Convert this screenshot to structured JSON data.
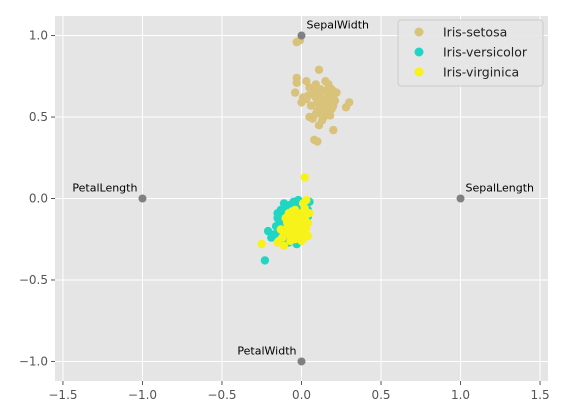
{
  "chart_data": {
    "type": "scatter",
    "title": "",
    "xlabel": "",
    "ylabel": "",
    "xlim": [
      -1.55,
      1.55
    ],
    "ylim": [
      -1.12,
      1.12
    ],
    "grid": true,
    "legend_position": "top-right",
    "x_ticks": [
      {
        "value": -1.5,
        "label": "−1.5"
      },
      {
        "value": -1.0,
        "label": "−1.0"
      },
      {
        "value": -0.5,
        "label": "−0.5"
      },
      {
        "value": 0.0,
        "label": "0.0"
      },
      {
        "value": 0.5,
        "label": "0.5"
      },
      {
        "value": 1.0,
        "label": "1.0"
      },
      {
        "value": 1.5,
        "label": "1.5"
      }
    ],
    "y_ticks": [
      {
        "value": -1.0,
        "label": "−1.0"
      },
      {
        "value": -0.5,
        "label": "−0.5"
      },
      {
        "value": 0.0,
        "label": "0.0"
      },
      {
        "value": 0.5,
        "label": "0.5"
      },
      {
        "value": 1.0,
        "label": "1.0"
      }
    ],
    "anchors": [
      {
        "name": "SepalLength",
        "x": 1.0,
        "y": 0.0,
        "align": "start"
      },
      {
        "name": "SepalWidth",
        "x": 0.0,
        "y": 1.0,
        "align": "start"
      },
      {
        "name": "PetalLength",
        "x": -1.0,
        "y": 0.0,
        "align": "end"
      },
      {
        "name": "PetalWidth",
        "x": 0.0,
        "y": -1.0,
        "align": "end"
      }
    ],
    "anchor_color": "#808080",
    "series": [
      {
        "name": "Iris-setosa",
        "color": "#d9c27a",
        "points": [
          [
            -0.03,
            0.96
          ],
          [
            -0.01,
            0.97
          ],
          [
            -0.04,
            0.65
          ],
          [
            -0.03,
            0.71
          ],
          [
            -0.03,
            0.74
          ],
          [
            0.0,
            0.59
          ],
          [
            0.01,
            0.62
          ],
          [
            0.03,
            0.61
          ],
          [
            0.04,
            0.63
          ],
          [
            0.05,
            0.68
          ],
          [
            0.06,
            0.57
          ],
          [
            0.07,
            0.64
          ],
          [
            0.08,
            0.66
          ],
          [
            0.09,
            0.62
          ],
          [
            0.1,
            0.59
          ],
          [
            0.11,
            0.64
          ],
          [
            0.12,
            0.67
          ],
          [
            0.13,
            0.61
          ],
          [
            0.14,
            0.56
          ],
          [
            0.15,
            0.72
          ],
          [
            0.16,
            0.6
          ],
          [
            0.17,
            0.63
          ],
          [
            0.18,
            0.58
          ],
          [
            0.19,
            0.55
          ],
          [
            0.2,
            0.63
          ],
          [
            0.21,
            0.6
          ],
          [
            0.1,
            0.54
          ],
          [
            0.12,
            0.52
          ],
          [
            0.14,
            0.5
          ],
          [
            0.16,
            0.53
          ],
          [
            0.18,
            0.51
          ],
          [
            0.2,
            0.57
          ],
          [
            0.13,
            0.48
          ],
          [
            0.11,
            0.45
          ],
          [
            0.09,
            0.52
          ],
          [
            0.07,
            0.49
          ],
          [
            0.05,
            0.5
          ],
          [
            0.2,
            0.42
          ],
          [
            0.1,
            0.35
          ],
          [
            0.08,
            0.36
          ],
          [
            0.28,
            0.56
          ],
          [
            0.3,
            0.59
          ],
          [
            0.11,
            0.79
          ],
          [
            0.03,
            0.72
          ],
          [
            0.09,
            0.7
          ],
          [
            0.15,
            0.66
          ],
          [
            0.17,
            0.7
          ],
          [
            0.19,
            0.67
          ],
          [
            0.22,
            0.65
          ],
          [
            0.13,
            0.57
          ]
        ]
      },
      {
        "name": "Iris-versicolor",
        "color": "#1fd6c4",
        "points": [
          [
            -0.23,
            -0.38
          ],
          [
            -0.21,
            -0.2
          ],
          [
            -0.19,
            -0.24
          ],
          [
            -0.16,
            -0.17
          ],
          [
            -0.15,
            -0.09
          ],
          [
            -0.14,
            -0.13
          ],
          [
            -0.13,
            -0.21
          ],
          [
            -0.12,
            -0.16
          ],
          [
            -0.11,
            -0.11
          ],
          [
            -0.1,
            -0.07
          ],
          [
            -0.09,
            -0.14
          ],
          [
            -0.08,
            -0.19
          ],
          [
            -0.07,
            -0.04
          ],
          [
            -0.06,
            -0.1
          ],
          [
            -0.05,
            -0.02
          ],
          [
            -0.04,
            -0.13
          ],
          [
            -0.03,
            -0.08
          ],
          [
            -0.02,
            -0.05
          ],
          [
            -0.01,
            -0.11
          ],
          [
            0.0,
            -0.14
          ],
          [
            0.01,
            -0.06
          ],
          [
            0.02,
            -0.09
          ],
          [
            0.03,
            -0.03
          ],
          [
            0.04,
            -0.07
          ],
          [
            0.05,
            -0.02
          ],
          [
            -0.03,
            -0.28
          ],
          [
            -0.06,
            -0.24
          ],
          [
            -0.12,
            -0.25
          ],
          [
            -0.17,
            -0.22
          ],
          [
            -0.08,
            -0.27
          ],
          [
            0.02,
            -0.17
          ],
          [
            0.03,
            -0.12
          ],
          [
            -0.01,
            -0.19
          ],
          [
            -0.04,
            -0.21
          ],
          [
            -0.09,
            -0.22
          ],
          [
            -0.14,
            -0.18
          ],
          [
            -0.11,
            -0.03
          ],
          [
            -0.05,
            -0.15
          ],
          [
            0.01,
            -0.1
          ],
          [
            -0.07,
            -0.12
          ],
          [
            -0.02,
            -0.01
          ],
          [
            -0.15,
            -0.12
          ],
          [
            -0.1,
            -0.18
          ],
          [
            -0.13,
            -0.07
          ],
          [
            0.0,
            -0.04
          ],
          [
            -0.06,
            -0.06
          ],
          [
            0.04,
            -0.11
          ],
          [
            -0.09,
            -0.09
          ],
          [
            -0.04,
            -0.17
          ],
          [
            -0.12,
            -0.13
          ]
        ]
      },
      {
        "name": "Iris-virginica",
        "color": "#f7f21a",
        "points": [
          [
            -0.25,
            -0.28
          ],
          [
            -0.15,
            -0.27
          ],
          [
            -0.12,
            -0.24
          ],
          [
            -0.1,
            -0.2
          ],
          [
            -0.09,
            -0.15
          ],
          [
            -0.08,
            -0.22
          ],
          [
            -0.07,
            -0.18
          ],
          [
            -0.06,
            -0.12
          ],
          [
            -0.05,
            -0.17
          ],
          [
            -0.04,
            -0.21
          ],
          [
            -0.03,
            -0.14
          ],
          [
            -0.02,
            -0.19
          ],
          [
            -0.01,
            -0.1
          ],
          [
            0.0,
            -0.16
          ],
          [
            0.01,
            -0.22
          ],
          [
            0.02,
            -0.12
          ],
          [
            0.03,
            -0.18
          ],
          [
            0.04,
            -0.15
          ],
          [
            0.05,
            -0.09
          ],
          [
            0.02,
            -0.06
          ],
          [
            0.01,
            -0.03
          ],
          [
            0.03,
            -0.01
          ],
          [
            0.02,
            0.13
          ],
          [
            -0.04,
            -0.25
          ],
          [
            -0.07,
            -0.26
          ],
          [
            -0.11,
            -0.29
          ],
          [
            -0.13,
            -0.19
          ],
          [
            -0.1,
            -0.12
          ],
          [
            -0.06,
            -0.08
          ],
          [
            -0.02,
            -0.24
          ],
          [
            0.0,
            -0.26
          ],
          [
            0.04,
            -0.23
          ],
          [
            -0.01,
            -0.14
          ],
          [
            -0.05,
            -0.1
          ],
          [
            -0.08,
            -0.13
          ],
          [
            -0.03,
            -0.2
          ],
          [
            0.01,
            -0.17
          ],
          [
            -0.09,
            -0.18
          ],
          [
            -0.04,
            -0.07
          ],
          [
            0.03,
            -0.1
          ],
          [
            -0.06,
            -0.21
          ],
          [
            -0.02,
            -0.11
          ],
          [
            0.0,
            -0.09
          ],
          [
            -0.07,
            -0.16
          ],
          [
            0.02,
            -0.2
          ],
          [
            -0.11,
            -0.22
          ],
          [
            -0.05,
            -0.14
          ],
          [
            0.01,
            -0.25
          ],
          [
            -0.03,
            -0.17
          ],
          [
            -0.08,
            -0.09
          ]
        ]
      }
    ]
  }
}
